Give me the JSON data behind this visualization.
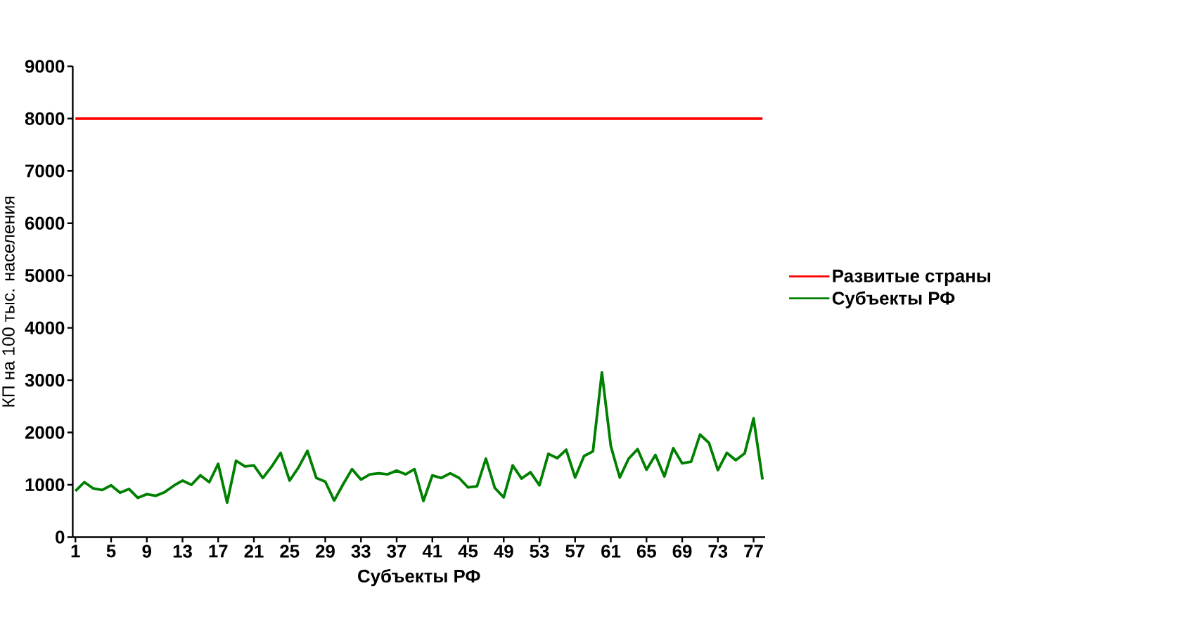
{
  "chart_data": {
    "type": "line",
    "xlabel": "Субъекты РФ",
    "ylabel": "КП на 100 тыс. населения",
    "categories": [
      "1",
      null,
      null,
      null,
      "5",
      null,
      null,
      null,
      "9",
      null,
      null,
      null,
      "13",
      null,
      null,
      null,
      "17",
      null,
      null,
      null,
      "21",
      null,
      null,
      null,
      "25",
      null,
      null,
      null,
      "29",
      null,
      null,
      null,
      "33",
      null,
      null,
      null,
      "37",
      null,
      null,
      null,
      "41",
      null,
      null,
      null,
      "45",
      null,
      null,
      null,
      "49",
      null,
      null,
      null,
      "53",
      null,
      null,
      null,
      "57",
      null,
      null,
      null,
      "61",
      null,
      null,
      null,
      "65",
      null,
      null,
      null,
      "69",
      null,
      null,
      null,
      "73",
      null,
      null,
      null,
      "77",
      null
    ],
    "series": [
      {
        "name": "Развитые страны",
        "color": "#ff0000",
        "values": [
          8000,
          8000,
          8000,
          8000,
          8000,
          8000,
          8000,
          8000,
          8000,
          8000,
          8000,
          8000,
          8000,
          8000,
          8000,
          8000,
          8000,
          8000,
          8000,
          8000,
          8000,
          8000,
          8000,
          8000,
          8000,
          8000,
          8000,
          8000,
          8000,
          8000,
          8000,
          8000,
          8000,
          8000,
          8000,
          8000,
          8000,
          8000,
          8000,
          8000,
          8000,
          8000,
          8000,
          8000,
          8000,
          8000,
          8000,
          8000,
          8000,
          8000,
          8000,
          8000,
          8000,
          8000,
          8000,
          8000,
          8000,
          8000,
          8000,
          8000,
          8000,
          8000,
          8000,
          8000,
          8000,
          8000,
          8000,
          8000,
          8000,
          8000,
          8000,
          8000,
          8000,
          8000,
          8000,
          8000,
          8000,
          8000
        ]
      },
      {
        "name": "Субъекты РФ",
        "color": "#008000",
        "values": [
          880,
          1050,
          930,
          900,
          990,
          850,
          920,
          750,
          820,
          790,
          860,
          980,
          1080,
          1000,
          1180,
          1050,
          1400,
          660,
          1460,
          1350,
          1370,
          1130,
          1350,
          1610,
          1080,
          1330,
          1650,
          1130,
          1060,
          700,
          1010,
          1300,
          1100,
          1200,
          1220,
          1200,
          1270,
          1200,
          1300,
          690,
          1180,
          1130,
          1220,
          1130,
          950,
          970,
          1500,
          940,
          760,
          1370,
          1120,
          1240,
          990,
          1590,
          1510,
          1670,
          1140,
          1550,
          1640,
          3150,
          1740,
          1140,
          1500,
          1680,
          1290,
          1570,
          1160,
          1700,
          1410,
          1440,
          1960,
          1800,
          1280,
          1610,
          1470,
          1600,
          2270,
          1100
        ]
      }
    ],
    "ylim": [
      0,
      9000
    ],
    "yticks": [
      0,
      1000,
      2000,
      3000,
      4000,
      5000,
      6000,
      7000,
      8000,
      9000
    ],
    "grid": false,
    "legend": "right",
    "marker": "none",
    "line_style": "solid"
  }
}
